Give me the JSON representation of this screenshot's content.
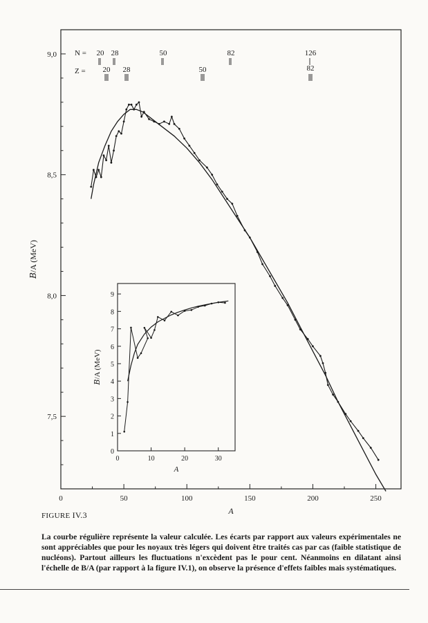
{
  "chart_data": [
    {
      "type": "line",
      "xlabel": "A",
      "ylabel": "𝐵/A (MeV)",
      "xlim": [
        0,
        270
      ],
      "ylim": [
        7.2,
        9.1
      ],
      "xticks": [
        0,
        50,
        100,
        150,
        200,
        250
      ],
      "xtick_labels": [
        "0",
        "50",
        "100",
        "150",
        "200",
        "250"
      ],
      "yticks": [
        7.5,
        8.0,
        8.5,
        9.0
      ],
      "ytick_labels": [
        "7,5",
        "8,0",
        "8,5",
        "9,0"
      ],
      "series": [
        {
          "kind": "experimental",
          "points": [
            [
              24,
              8.45
            ],
            [
              26,
              8.52
            ],
            [
              28,
              8.49
            ],
            [
              30,
              8.52
            ],
            [
              32,
              8.49
            ],
            [
              34,
              8.58
            ],
            [
              36,
              8.56
            ],
            [
              38,
              8.62
            ],
            [
              40,
              8.55
            ],
            [
              42,
              8.6
            ],
            [
              44,
              8.66
            ],
            [
              46,
              8.68
            ],
            [
              48,
              8.67
            ],
            [
              50,
              8.72
            ],
            [
              52,
              8.77
            ],
            [
              54,
              8.79
            ],
            [
              56,
              8.79
            ],
            [
              58,
              8.77
            ],
            [
              60,
              8.79
            ],
            [
              62,
              8.8
            ],
            [
              64,
              8.74
            ],
            [
              66,
              8.76
            ],
            [
              70,
              8.73
            ],
            [
              74,
              8.72
            ],
            [
              78,
              8.71
            ],
            [
              82,
              8.72
            ],
            [
              86,
              8.71
            ],
            [
              88,
              8.74
            ],
            [
              90,
              8.71
            ],
            [
              94,
              8.69
            ],
            [
              98,
              8.65
            ],
            [
              102,
              8.62
            ],
            [
              106,
              8.59
            ],
            [
              110,
              8.56
            ],
            [
              116,
              8.53
            ],
            [
              120,
              8.5
            ],
            [
              124,
              8.46
            ],
            [
              128,
              8.43
            ],
            [
              132,
              8.4
            ],
            [
              136,
              8.38
            ],
            [
              140,
              8.33
            ],
            [
              146,
              8.27
            ],
            [
              150,
              8.24
            ],
            [
              156,
              8.18
            ],
            [
              160,
              8.13
            ],
            [
              166,
              8.08
            ],
            [
              170,
              8.04
            ],
            [
              176,
              7.99
            ],
            [
              180,
              7.96
            ],
            [
              186,
              7.9
            ],
            [
              190,
              7.86
            ],
            [
              196,
              7.82
            ],
            [
              200,
              7.79
            ],
            [
              206,
              7.75
            ],
            [
              208,
              7.72
            ],
            [
              210,
              7.68
            ],
            [
              212,
              7.63
            ],
            [
              216,
              7.59
            ],
            [
              220,
              7.56
            ],
            [
              226,
              7.51
            ],
            [
              230,
              7.48
            ],
            [
              236,
              7.44
            ],
            [
              240,
              7.41
            ],
            [
              246,
              7.37
            ],
            [
              252,
              7.32
            ]
          ]
        },
        {
          "kind": "calculated",
          "points": [
            [
              24,
              8.4
            ],
            [
              26,
              8.46
            ],
            [
              30,
              8.55
            ],
            [
              35,
              8.62
            ],
            [
              40,
              8.68
            ],
            [
              45,
              8.72
            ],
            [
              50,
              8.75
            ],
            [
              55,
              8.77
            ],
            [
              60,
              8.77
            ],
            [
              65,
              8.76
            ],
            [
              70,
              8.74
            ],
            [
              80,
              8.7
            ],
            [
              90,
              8.66
            ],
            [
              100,
              8.61
            ],
            [
              110,
              8.55
            ],
            [
              120,
              8.48
            ],
            [
              130,
              8.4
            ],
            [
              140,
              8.32
            ],
            [
              150,
              8.24
            ],
            [
              160,
              8.15
            ],
            [
              170,
              8.06
            ],
            [
              180,
              7.97
            ],
            [
              190,
              7.87
            ],
            [
              200,
              7.77
            ],
            [
              210,
              7.67
            ],
            [
              220,
              7.56
            ],
            [
              230,
              7.46
            ],
            [
              240,
              7.36
            ],
            [
              250,
              7.26
            ],
            [
              258,
              7.19
            ]
          ]
        }
      ],
      "annotations": {
        "n_label": "N =",
        "z_label": "Z =",
        "magic": [
          {
            "n": "20",
            "z": "20"
          },
          {
            "n": "28",
            "z": "28"
          },
          {
            "n": "50",
            "z": "50"
          },
          {
            "n": "82",
            "z": "82"
          },
          {
            "n": "126",
            "z": "82"
          }
        ]
      }
    },
    {
      "type": "line",
      "xlabel": "A",
      "ylabel": "𝐵/A (MeV)",
      "xlim": [
        0,
        35
      ],
      "ylim": [
        0,
        9.6
      ],
      "xticks": [
        0,
        10,
        20,
        30
      ],
      "xtick_labels": [
        "0",
        "10",
        "20",
        "30"
      ],
      "yticks": [
        0,
        1,
        2,
        3,
        4,
        5,
        6,
        7,
        8,
        9
      ],
      "ytick_labels": [
        "0",
        "1",
        "2",
        "3",
        "4",
        "5",
        "6",
        "7",
        "8",
        "9"
      ],
      "series": [
        {
          "kind": "experimental",
          "points": [
            [
              2,
              1.1
            ],
            [
              3,
              2.8
            ],
            [
              4,
              7.07
            ],
            [
              6,
              5.33
            ],
            [
              7,
              5.6
            ],
            [
              9,
              6.46
            ],
            [
              8,
              7.06
            ],
            [
              10,
              6.48
            ],
            [
              11,
              6.93
            ],
            [
              12,
              7.68
            ],
            [
              14,
              7.48
            ],
            [
              16,
              7.98
            ],
            [
              18,
              7.77
            ],
            [
              20,
              8.03
            ],
            [
              22,
              8.08
            ],
            [
              24,
              8.26
            ],
            [
              26,
              8.33
            ],
            [
              28,
              8.45
            ],
            [
              30,
              8.52
            ],
            [
              32,
              8.49
            ]
          ]
        },
        {
          "kind": "calculated",
          "points": [
            [
              3,
              4.0
            ],
            [
              4,
              4.9
            ],
            [
              5,
              5.6
            ],
            [
              6,
              6.1
            ],
            [
              8,
              6.7
            ],
            [
              10,
              7.1
            ],
            [
              12,
              7.4
            ],
            [
              14,
              7.6
            ],
            [
              16,
              7.8
            ],
            [
              18,
              7.95
            ],
            [
              20,
              8.08
            ],
            [
              22,
              8.2
            ],
            [
              24,
              8.3
            ],
            [
              26,
              8.38
            ],
            [
              28,
              8.45
            ],
            [
              30,
              8.52
            ],
            [
              32,
              8.57
            ],
            [
              33,
              8.6
            ]
          ]
        }
      ]
    }
  ],
  "caption": {
    "label_prefix": "FIGURE",
    "label_num": "IV.3",
    "text": "La courbe régulière représente la valeur calculée. Les écarts par rapport aux valeurs expérimentales ne sont appréciables que pour les noyaux très légers qui doivent être traités cas par cas (faible statistique de nucléons). Partout ailleurs les fluctuations n'excèdent pas le pour cent. Néanmoins en dilatant ainsi l'échelle de B/A (par rapport à la figure IV.1), on observe la présence d'effets faibles mais systématiques."
  }
}
